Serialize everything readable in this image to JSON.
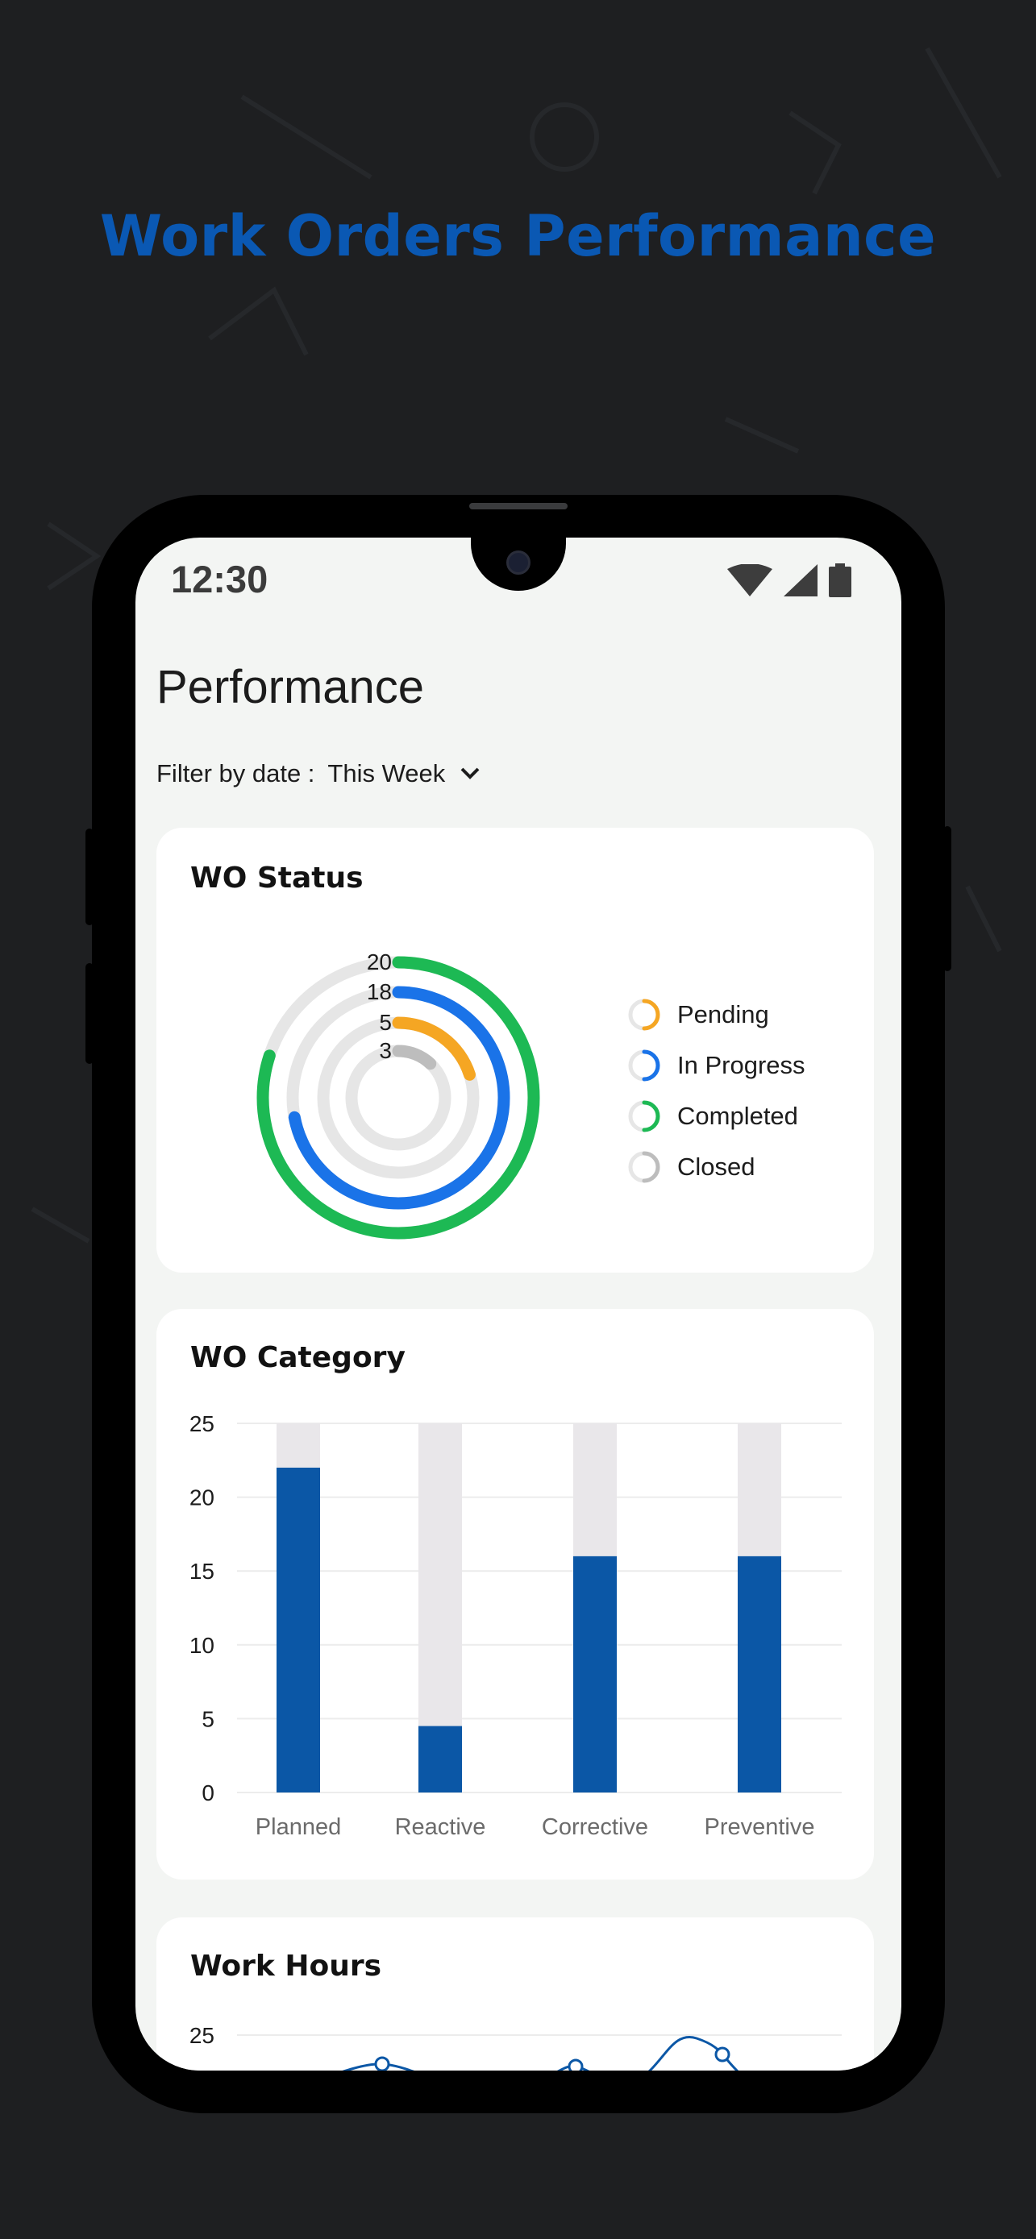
{
  "promo": {
    "title": "Work Orders Performance"
  },
  "status_bar": {
    "time": "12:30",
    "icons": [
      "wifi-icon",
      "signal-icon",
      "battery-icon"
    ]
  },
  "page": {
    "title": "Performance",
    "filter_label": "Filter by date :",
    "filter_value": "This Week"
  },
  "wo_status": {
    "title": "WO Status",
    "legend": [
      {
        "label": "Pending",
        "color": "#f5a623"
      },
      {
        "label": "In Progress",
        "color": "#1a73e8"
      },
      {
        "label": "Completed",
        "color": "#1db954"
      },
      {
        "label": "Closed",
        "color": "#bdbdbd"
      }
    ]
  },
  "wo_category": {
    "title": "WO Category"
  },
  "work_hours": {
    "title": "Work Hours",
    "y_top_label": "25"
  },
  "chart_data": [
    {
      "type": "radial-bar",
      "title": "WO Status",
      "categories": [
        "Completed",
        "In Progress",
        "Pending",
        "Closed"
      ],
      "values": [
        20,
        18,
        5,
        3
      ],
      "max": 25,
      "colors": [
        "#1db954",
        "#1a73e8",
        "#f5a623",
        "#bdbdbd"
      ],
      "track_color": "#e6e6e6"
    },
    {
      "type": "bar",
      "title": "WO Category",
      "categories": [
        "Planned",
        "Reactive",
        "Corrective",
        "Preventive"
      ],
      "values": [
        22,
        4.5,
        16,
        16
      ],
      "ylim": [
        0,
        25
      ],
      "yticks": [
        0,
        5,
        10,
        15,
        20,
        25
      ],
      "bar_color": "#0b57a6",
      "track_color": "#e9e7ea",
      "grid": true
    },
    {
      "type": "line",
      "title": "Work Hours",
      "yticks": [
        25
      ],
      "line_color": "#0b57a6"
    }
  ]
}
